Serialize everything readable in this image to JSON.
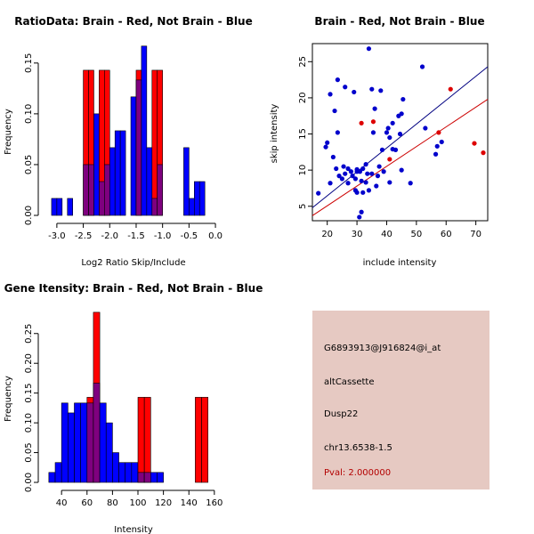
{
  "colors": {
    "red": "#ff0000",
    "blue": "#0000ff",
    "overlap": "#7f007f",
    "blue_points": "#0000cc",
    "red_points": "#dd0000",
    "blue_line": "#000080",
    "red_line": "#cc0000",
    "panel_bg": "#e6c9c2",
    "pval_text": "#b30000"
  },
  "chart_data": [
    {
      "type": "bar",
      "title": "RatioData: Brain - Red, Not Brain - Blue",
      "xlabel": "Log2 Ratio Skip/Include",
      "ylabel": "Frequency",
      "xlim": [
        -3.2,
        0.1
      ],
      "ylim": [
        0,
        0.17
      ],
      "xticks": [
        -3.0,
        -2.5,
        -2.0,
        -1.5,
        -1.0,
        -0.5,
        0.0
      ],
      "xtick_labels": [
        "-3.0",
        "-2.5",
        "-2.0",
        "-1.5",
        "-1.0",
        "-0.5",
        "0.0"
      ],
      "yticks": [
        0.0,
        0.05,
        0.1,
        0.15
      ],
      "ytick_labels": [
        "0.00",
        "0.05",
        "0.10",
        "0.15"
      ],
      "bin_starts": [
        -3.1,
        -3.0,
        -2.9,
        -2.8,
        -2.7,
        -2.6,
        -2.5,
        -2.4,
        -2.3,
        -2.2,
        -2.1,
        -2.0,
        -1.9,
        -1.8,
        -1.7,
        -1.6,
        -1.5,
        -1.4,
        -1.3,
        -1.2,
        -1.1,
        -1.0,
        -0.9,
        -0.8,
        -0.7,
        -0.6,
        -0.5,
        -0.4,
        -0.3,
        -0.2
      ],
      "bin_width": 0.1,
      "series": [
        {
          "name": "Not Brain",
          "color": "blue",
          "values": [
            0.0167,
            0.0167,
            0,
            0.0167,
            0,
            0,
            0.05,
            0.05,
            0.1,
            0.0333,
            0.05,
            0.0667,
            0.0833,
            0.0833,
            0,
            0.1167,
            0.1333,
            0.1667,
            0.0667,
            0.0167,
            0.05,
            0,
            0,
            0,
            0,
            0.0667,
            0.0167,
            0.0333,
            0.0333,
            0
          ]
        },
        {
          "name": "Brain",
          "color": "red",
          "values": [
            0,
            0,
            0,
            0,
            0,
            0,
            0.1429,
            0.1429,
            0,
            0.1429,
            0.1429,
            0,
            0,
            0,
            0,
            0,
            0.1429,
            0,
            0,
            0.1429,
            0.1429,
            0,
            0,
            0,
            0,
            0,
            0,
            0,
            0,
            0
          ]
        }
      ]
    },
    {
      "type": "scatter",
      "title": "Brain - Red, Not Brain - Blue",
      "xlabel": "include intensity",
      "ylabel": "skip intensity",
      "xlim": [
        15,
        74
      ],
      "ylim": [
        3,
        27.5
      ],
      "xticks": [
        20,
        30,
        40,
        50,
        60,
        70
      ],
      "yticks": [
        5,
        10,
        15,
        20,
        25
      ],
      "series": [
        {
          "name": "Not Brain",
          "color": "blue",
          "points": [
            [
              17,
              6.8
            ],
            [
              19.5,
              13.2
            ],
            [
              20,
              13.8
            ],
            [
              21,
              20.5
            ],
            [
              21,
              8.2
            ],
            [
              22,
              11.8
            ],
            [
              22.5,
              18.2
            ],
            [
              23,
              10.2
            ],
            [
              23.5,
              22.5
            ],
            [
              23.5,
              15.2
            ],
            [
              24,
              9.2
            ],
            [
              25,
              8.8
            ],
            [
              25.5,
              10.5
            ],
            [
              26,
              9.5
            ],
            [
              26,
              21.5
            ],
            [
              27,
              10.2
            ],
            [
              27,
              8.2
            ],
            [
              28,
              9.8
            ],
            [
              28.5,
              9.2
            ],
            [
              29,
              20.8
            ],
            [
              29.5,
              7.2
            ],
            [
              29.5,
              8.8
            ],
            [
              30,
              10.1
            ],
            [
              30,
              9.8
            ],
            [
              30,
              6.9
            ],
            [
              30.8,
              3.5
            ],
            [
              31,
              9.8
            ],
            [
              31.5,
              4.2
            ],
            [
              31.5,
              8.5
            ],
            [
              32,
              10.2
            ],
            [
              32,
              6.9
            ],
            [
              33,
              10.8
            ],
            [
              33,
              8.3
            ],
            [
              33.5,
              9.5
            ],
            [
              34,
              26.8
            ],
            [
              34,
              7.2
            ],
            [
              35,
              21.2
            ],
            [
              35,
              9.5
            ],
            [
              35.5,
              15.2
            ],
            [
              36,
              18.5
            ],
            [
              36.5,
              7.8
            ],
            [
              37,
              9.2
            ],
            [
              37.5,
              10.5
            ],
            [
              38,
              21.0
            ],
            [
              38.5,
              12.8
            ],
            [
              39,
              9.8
            ],
            [
              40,
              15.2
            ],
            [
              40.5,
              15.8
            ],
            [
              41,
              8.3
            ],
            [
              41,
              14.5
            ],
            [
              42,
              16.5
            ],
            [
              42,
              12.9
            ],
            [
              43,
              12.8
            ],
            [
              44,
              17.5
            ],
            [
              44.5,
              15.0
            ],
            [
              45,
              10.0
            ],
            [
              45,
              17.8
            ],
            [
              45.5,
              19.8
            ],
            [
              48,
              8.2
            ],
            [
              52,
              24.3
            ],
            [
              53,
              15.8
            ],
            [
              56.5,
              12.2
            ],
            [
              57,
              13.3
            ],
            [
              58.5,
              13.9
            ]
          ]
        },
        {
          "name": "Brain",
          "color": "red",
          "points": [
            [
              31.5,
              16.5
            ],
            [
              35.5,
              16.7
            ],
            [
              41,
              11.5
            ],
            [
              57.5,
              15.2
            ],
            [
              61.5,
              21.2
            ],
            [
              69.5,
              13.7
            ],
            [
              72.5,
              12.4
            ]
          ]
        }
      ],
      "fit_lines": [
        {
          "name": "Not Brain",
          "color": "blue_line",
          "from": [
            15,
            4.8
          ],
          "to": [
            74,
            24.3
          ]
        },
        {
          "name": "Brain",
          "color": "red_line",
          "from": [
            15,
            3.7
          ],
          "to": [
            74,
            19.8
          ]
        }
      ]
    },
    {
      "type": "bar",
      "title": "Gene Itensity: Brain - Red, Not Brain - Blue",
      "xlabel": "Intensity",
      "ylabel": "Frequency",
      "xlim": [
        28,
        165
      ],
      "ylim": [
        0,
        0.29
      ],
      "xticks": [
        40,
        60,
        80,
        100,
        120,
        140,
        160
      ],
      "xtick_labels": [
        "40",
        "60",
        "80",
        "100",
        "120",
        "140",
        "160"
      ],
      "yticks": [
        0.0,
        0.05,
        0.1,
        0.15,
        0.2,
        0.25
      ],
      "ytick_labels": [
        "0.00",
        "0.05",
        "0.10",
        "0.15",
        "0.20",
        "0.25"
      ],
      "bin_starts": [
        30,
        35,
        40,
        45,
        50,
        55,
        60,
        65,
        70,
        75,
        80,
        85,
        90,
        95,
        100,
        105,
        110,
        115,
        120,
        125,
        130,
        135,
        140,
        145,
        150
      ],
      "bin_width": 5,
      "series": [
        {
          "name": "Not Brain",
          "color": "blue",
          "values": [
            0.0167,
            0.0333,
            0.1333,
            0.1167,
            0.1333,
            0.1333,
            0.1333,
            0.1667,
            0.1333,
            0.1,
            0.05,
            0.0333,
            0.0333,
            0.0333,
            0.0167,
            0.0167,
            0.0167,
            0.0167,
            0,
            0,
            0,
            0,
            0,
            0,
            0
          ]
        },
        {
          "name": "Brain",
          "color": "red",
          "values": [
            0,
            0,
            0,
            0,
            0,
            0,
            0.1429,
            0.2857,
            0,
            0,
            0,
            0,
            0,
            0,
            0.1429,
            0.1429,
            0,
            0,
            0,
            0,
            0,
            0,
            0,
            0.1429,
            0.1429
          ]
        }
      ]
    }
  ],
  "info": {
    "probe_id": "G6893913@J916824@i_at",
    "event_type": "altCassette",
    "gene": "Dusp22",
    "location": "chr13.6538-1.5",
    "pval": "Pval: 2.000000"
  }
}
